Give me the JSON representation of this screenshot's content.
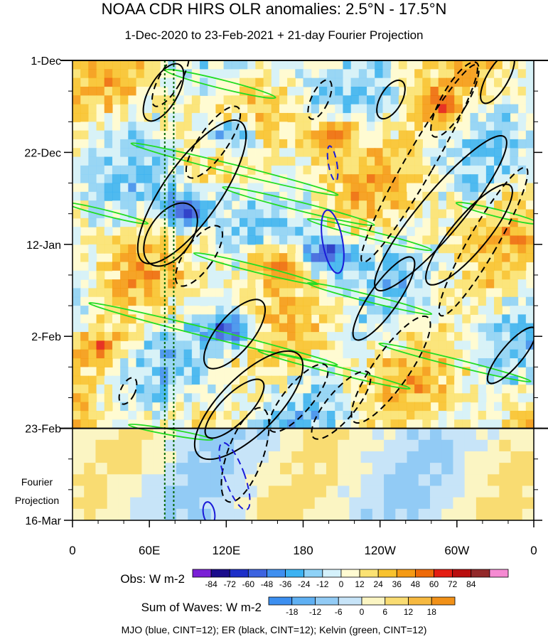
{
  "chart_data": {
    "type": "heatmap",
    "title": "NOAA CDR HIRS OLR anomalies: 2.5°N - 17.5°N",
    "subtitle": "1-Dec-2020 to 23-Feb-2021 + 21-day Fourier Projection",
    "y_ticks": [
      {
        "label": "1-Dec",
        "day": 0
      },
      {
        "label": "22-Dec",
        "day": 21
      },
      {
        "label": "12-Jan",
        "day": 42
      },
      {
        "label": "2-Feb",
        "day": 63
      },
      {
        "label": "23-Feb",
        "day": 84
      },
      {
        "label": "16-Mar",
        "day": 105
      }
    ],
    "x_ticks": [
      {
        "label": "0",
        "lon": 0
      },
      {
        "label": "60E",
        "lon": 60
      },
      {
        "label": "120E",
        "lon": 120
      },
      {
        "label": "180",
        "lon": 180
      },
      {
        "label": "120W",
        "lon": 240
      },
      {
        "label": "60W",
        "lon": 300
      },
      {
        "label": "0",
        "lon": 360
      }
    ],
    "projection_label_line1": "Fourier",
    "projection_label_line2": "Projection",
    "projection_start_day": 84,
    "reference_lons": [
      72,
      79
    ],
    "obs_legend": {
      "label": "Obs: W m-2",
      "ticks": [
        "-84",
        "-72",
        "-60",
        "-48",
        "-36",
        "-24",
        "-12",
        "0",
        "12",
        "24",
        "36",
        "48",
        "60",
        "72",
        "84"
      ],
      "colors": [
        "#7a1fd6",
        "#1a0c8c",
        "#1d2fc8",
        "#3c63e0",
        "#3f8ff0",
        "#3cb2f2",
        "#8ed2f7",
        "#d4f1fb",
        "#fffbd2",
        "#fbe272",
        "#f8c22e",
        "#f59a14",
        "#ee6a08",
        "#e41d12",
        "#b90e0e",
        "#93292a",
        "#f58ad2"
      ]
    },
    "waves_legend": {
      "label": "Sum of Waves: W m-2",
      "ticks": [
        "-18",
        "-12",
        "-6",
        "0",
        "6",
        "12",
        "18"
      ],
      "colors": [
        "#3c8ff0",
        "#5fb0f3",
        "#92cbf5",
        "#c7e4f8",
        "#fbf5c3",
        "#f9dc72",
        "#f6b940",
        "#f19118"
      ]
    },
    "contours_note": "MJO (blue, CINT=12); ER (black, CINT=12); Kelvin (green, CINT=12)",
    "colors": {
      "mjo": "#1a1ad8",
      "er": "#000000",
      "kelvin": "#22dd22",
      "reference": "#006600"
    }
  }
}
